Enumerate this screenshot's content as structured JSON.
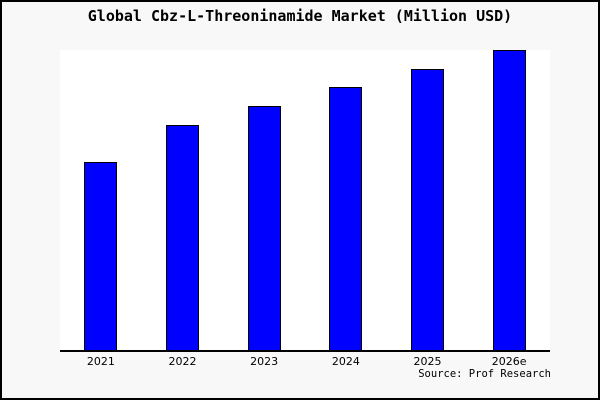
{
  "title": "Global Cbz-L-Threoninamide Market (Million USD)",
  "source": "Source: Prof Research",
  "colors": {
    "frame_background": "#f8f8f8",
    "plot_background": "#ffffff",
    "bar_fill": "#0000fe",
    "bar_border": "#000000",
    "axis": "#000000",
    "text": "#000000"
  },
  "chart_data": {
    "type": "bar",
    "title": "Global Cbz-L-Threoninamide Market (Million USD)",
    "categories": [
      "2021",
      "2022",
      "2023",
      "2024",
      "2025",
      "2026e"
    ],
    "values": [
      62.7,
      75.0,
      81.3,
      87.7,
      93.7,
      100.0
    ],
    "values_note": "no y-axis scale shown; values are bar heights as percent of tallest (2026e) bar",
    "xlabel": "",
    "ylabel": "",
    "ylim": [
      0,
      100
    ],
    "grid": false,
    "legend": false,
    "bar_color": "#0000fe",
    "bar_border_color": "#000000"
  }
}
